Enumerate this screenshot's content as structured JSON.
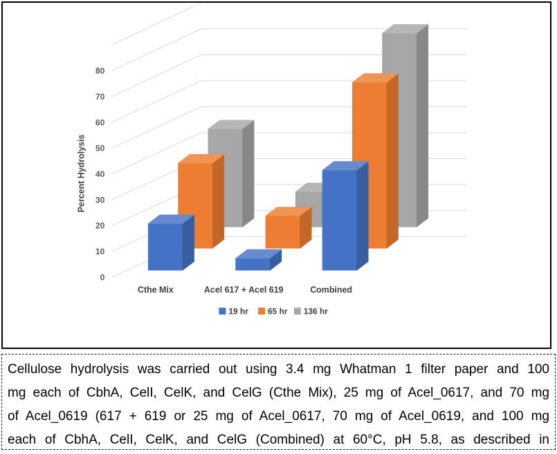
{
  "chart_data": {
    "type": "bar",
    "subtype": "3d-clustered-column",
    "title": "",
    "xlabel": "",
    "ylabel": "Percent Hydrolysis",
    "categories": [
      "Cthe Mix",
      "Acel 617 + Acel 619",
      "Combined"
    ],
    "series": [
      {
        "name": "19 hr",
        "color": "#4472C4",
        "values": [
          20,
          5,
          40
        ]
      },
      {
        "name": "65 hr",
        "color": "#ED7D31",
        "values": [
          42,
          15,
          72
        ]
      },
      {
        "name": "136 hr",
        "color": "#A6A6A6",
        "values": [
          57,
          18,
          88
        ]
      }
    ],
    "y_ticks": [
      0,
      10,
      20,
      30,
      40,
      50,
      60,
      70,
      80
    ],
    "ylim": [
      0,
      90
    ],
    "grid": true,
    "grid_color": "#d9d9d9",
    "tick_label_color": "#595959",
    "text_color": "#3f3f3f",
    "legend_position": "bottom",
    "legend": [
      "19 hr",
      "65 hr",
      "136 hr"
    ]
  },
  "caption": {
    "lines": [
      "Cellulose hydrolysis was carried out using 3.4 mg Whatman 1 filter paper and 100",
      "mg each of CbhA, CelI, CelK, and CelG (Cthe Mix), 25 mg of Acel_0617, and 70 mg",
      "of Acel_0619 (617 + 619 or 25 mg of Acel_0617, 70 mg of Acel_0619, and 100 mg",
      "each of CbhA, CelI, CelK, and CelG (Combined) at 60°C, pH 5.8, as described in"
    ]
  }
}
